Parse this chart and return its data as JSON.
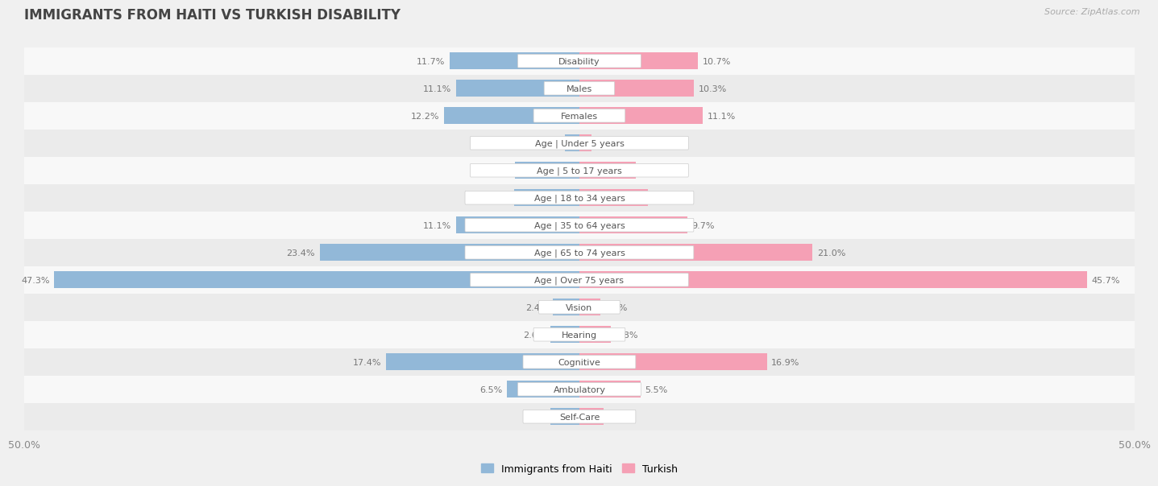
{
  "title": "IMMIGRANTS FROM HAITI VS TURKISH DISABILITY",
  "source": "Source: ZipAtlas.com",
  "categories": [
    "Disability",
    "Males",
    "Females",
    "Age | Under 5 years",
    "Age | 5 to 17 years",
    "Age | 18 to 34 years",
    "Age | 35 to 64 years",
    "Age | 65 to 74 years",
    "Age | Over 75 years",
    "Vision",
    "Hearing",
    "Cognitive",
    "Ambulatory",
    "Self-Care"
  ],
  "haiti_values": [
    11.7,
    11.1,
    12.2,
    1.3,
    5.8,
    5.9,
    11.1,
    23.4,
    47.3,
    2.4,
    2.6,
    17.4,
    6.5,
    2.6
  ],
  "turkish_values": [
    10.7,
    10.3,
    11.1,
    1.1,
    5.1,
    6.2,
    9.7,
    21.0,
    45.7,
    1.9,
    2.8,
    16.9,
    5.5,
    2.2
  ],
  "haiti_color": "#92b8d8",
  "turkish_color": "#f5a0b5",
  "haiti_label": "Immigrants from Haiti",
  "turkish_label": "Turkish",
  "axis_limit": 50.0,
  "axis_label": "50.0%",
  "bg_light": "#f0f0f0",
  "bg_white": "#fafafa",
  "row_stripe_light": "#ebebeb",
  "row_stripe_white": "#f8f8f8",
  "title_fontsize": 12,
  "label_fontsize": 8,
  "value_fontsize": 8,
  "bar_height": 0.62
}
